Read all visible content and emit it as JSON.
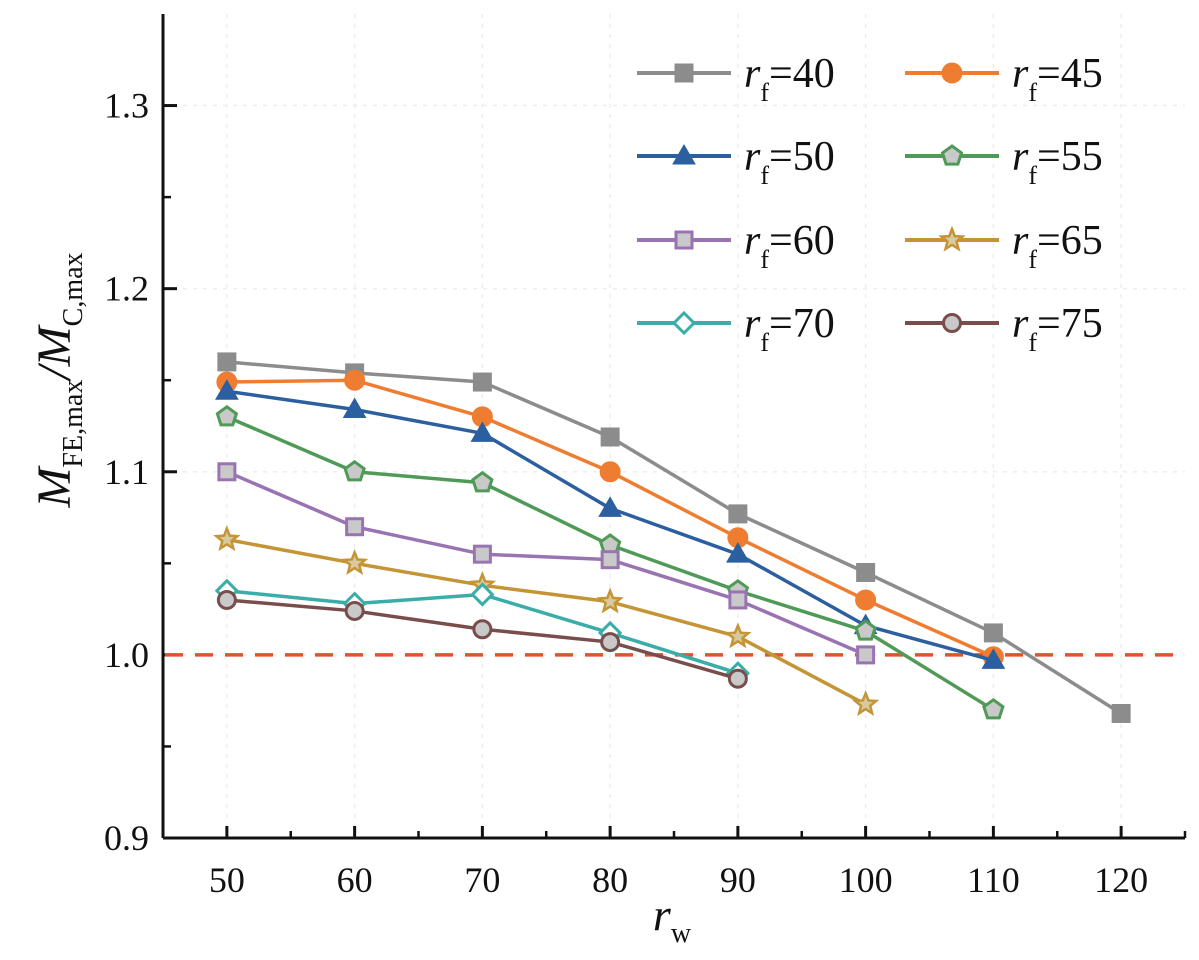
{
  "chart_data": {
    "type": "line",
    "title": "",
    "xlabel": "r",
    "xlabel_sub": "w",
    "ylabel": {
      "main": "M",
      "sub1": "FE,max",
      "slash": "/",
      "main2": "M",
      "sub2": "C,max"
    },
    "x_ticks": [
      50,
      60,
      70,
      80,
      90,
      100,
      110,
      120
    ],
    "y_ticks": [
      "0.9",
      "1.0",
      "1.1",
      "1.2",
      "1.3"
    ],
    "xlim": [
      45,
      125
    ],
    "ylim": [
      0.9,
      1.35
    ],
    "reference_line": {
      "y": 1.0,
      "style": "dashed",
      "color": "#e2522f"
    },
    "legend": {
      "position": "top-right",
      "columns": 2,
      "label_prefix": "r",
      "label_sub": "f"
    },
    "series": [
      {
        "name": "=40",
        "color": "#8c8c8c",
        "marker": "square-filled",
        "x": [
          50,
          60,
          70,
          80,
          90,
          100,
          110,
          120
        ],
        "y": [
          1.16,
          1.154,
          1.149,
          1.119,
          1.077,
          1.045,
          1.012,
          0.968
        ]
      },
      {
        "name": "=45",
        "color": "#ef7d31",
        "marker": "circle-filled",
        "x": [
          50,
          60,
          70,
          80,
          90,
          100,
          110
        ],
        "y": [
          1.149,
          1.15,
          1.13,
          1.1,
          1.064,
          1.03,
          0.999
        ]
      },
      {
        "name": "=50",
        "color": "#2c5f9f",
        "marker": "triangle-filled",
        "x": [
          50,
          60,
          70,
          80,
          90,
          100,
          110
        ],
        "y": [
          1.144,
          1.134,
          1.121,
          1.08,
          1.055,
          1.016,
          0.997
        ]
      },
      {
        "name": "=55",
        "color": "#4f9a56",
        "marker": "pentagon",
        "x": [
          50,
          60,
          70,
          80,
          90,
          100,
          110
        ],
        "y": [
          1.13,
          1.1,
          1.094,
          1.06,
          1.035,
          1.013,
          0.97
        ]
      },
      {
        "name": "=60",
        "color": "#9a73b3",
        "marker": "square-open",
        "x": [
          50,
          60,
          70,
          80,
          90,
          100
        ],
        "y": [
          1.1,
          1.07,
          1.055,
          1.052,
          1.03,
          1.0
        ]
      },
      {
        "name": "=65",
        "color": "#c49435",
        "marker": "star",
        "x": [
          50,
          60,
          70,
          80,
          90,
          100
        ],
        "y": [
          1.063,
          1.05,
          1.038,
          1.029,
          1.01,
          0.973
        ]
      },
      {
        "name": "=70",
        "color": "#3aada8",
        "marker": "diamond-open",
        "x": [
          50,
          60,
          70,
          80,
          90
        ],
        "y": [
          1.035,
          1.028,
          1.033,
          1.012,
          0.99
        ]
      },
      {
        "name": "=75",
        "color": "#7a4d4d",
        "marker": "circle-open",
        "x": [
          50,
          60,
          70,
          80,
          90
        ],
        "y": [
          1.03,
          1.024,
          1.014,
          1.007,
          0.987
        ]
      }
    ]
  }
}
